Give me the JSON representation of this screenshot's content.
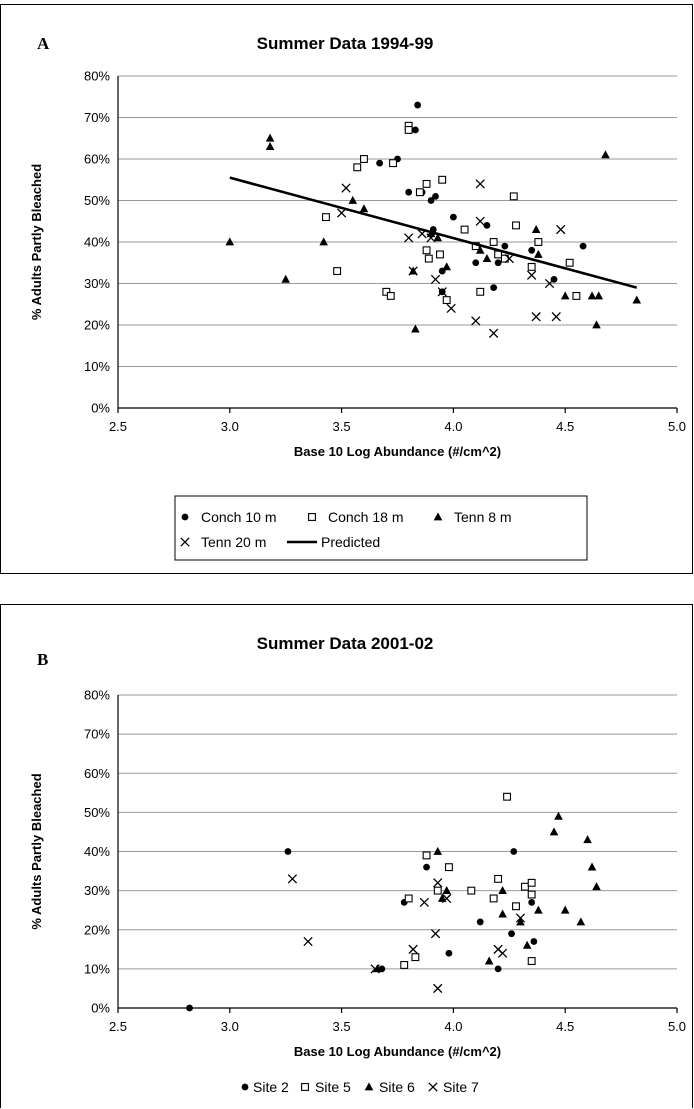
{
  "chart_data": [
    {
      "panel_label": "A",
      "type": "scatter",
      "title": "Summer Data 1994-99",
      "xlabel": "Base 10 Log Abundance (#/cm^2)",
      "ylabel": "% Adults Partly Bleached",
      "xlim": [
        2.5,
        5.0
      ],
      "ylim": [
        0,
        0.8
      ],
      "xticks": [
        "2.5",
        "3.0",
        "3.5",
        "4.0",
        "4.5",
        "5.0"
      ],
      "yticks": [
        "0%",
        "10%",
        "20%",
        "30%",
        "40%",
        "50%",
        "60%",
        "70%",
        "80%"
      ],
      "grid": true,
      "legend_position": "bottom",
      "series": [
        {
          "name": "Conch 10 m",
          "marker": "circle",
          "points": [
            [
              3.67,
              0.59
            ],
            [
              3.75,
              0.6
            ],
            [
              3.8,
              0.52
            ],
            [
              3.83,
              0.67
            ],
            [
              3.84,
              0.73
            ],
            [
              3.86,
              0.52
            ],
            [
              3.9,
              0.5
            ],
            [
              3.91,
              0.43
            ],
            [
              3.92,
              0.51
            ],
            [
              3.95,
              0.33
            ],
            [
              3.95,
              0.28
            ],
            [
              4.0,
              0.46
            ],
            [
              4.1,
              0.35
            ],
            [
              4.15,
              0.44
            ],
            [
              4.18,
              0.29
            ],
            [
              4.2,
              0.35
            ],
            [
              4.23,
              0.39
            ],
            [
              4.35,
              0.38
            ],
            [
              4.45,
              0.31
            ],
            [
              4.58,
              0.39
            ]
          ]
        },
        {
          "name": "Conch 18 m",
          "marker": "square",
          "points": [
            [
              3.43,
              0.46
            ],
            [
              3.48,
              0.33
            ],
            [
              3.57,
              0.58
            ],
            [
              3.6,
              0.6
            ],
            [
              3.7,
              0.28
            ],
            [
              3.72,
              0.27
            ],
            [
              3.73,
              0.59
            ],
            [
              3.8,
              0.68
            ],
            [
              3.8,
              0.67
            ],
            [
              3.85,
              0.52
            ],
            [
              3.88,
              0.54
            ],
            [
              3.88,
              0.38
            ],
            [
              3.89,
              0.36
            ],
            [
              3.94,
              0.37
            ],
            [
              3.95,
              0.55
            ],
            [
              3.97,
              0.26
            ],
            [
              4.05,
              0.43
            ],
            [
              4.1,
              0.39
            ],
            [
              4.12,
              0.28
            ],
            [
              4.18,
              0.4
            ],
            [
              4.2,
              0.37
            ],
            [
              4.23,
              0.36
            ],
            [
              4.27,
              0.51
            ],
            [
              4.28,
              0.44
            ],
            [
              4.35,
              0.34
            ],
            [
              4.38,
              0.4
            ],
            [
              4.52,
              0.35
            ],
            [
              4.55,
              0.27
            ]
          ]
        },
        {
          "name": "Tenn 8 m",
          "marker": "triangle",
          "points": [
            [
              3.0,
              0.4
            ],
            [
              3.18,
              0.65
            ],
            [
              3.18,
              0.63
            ],
            [
              3.25,
              0.31
            ],
            [
              3.42,
              0.4
            ],
            [
              3.55,
              0.5
            ],
            [
              3.6,
              0.48
            ],
            [
              3.82,
              0.33
            ],
            [
              3.83,
              0.19
            ],
            [
              3.9,
              0.42
            ],
            [
              3.93,
              0.41
            ],
            [
              3.97,
              0.34
            ],
            [
              4.12,
              0.38
            ],
            [
              4.15,
              0.36
            ],
            [
              4.37,
              0.43
            ],
            [
              4.38,
              0.37
            ],
            [
              4.5,
              0.27
            ],
            [
              4.62,
              0.27
            ],
            [
              4.64,
              0.2
            ],
            [
              4.65,
              0.27
            ],
            [
              4.68,
              0.61
            ],
            [
              4.82,
              0.26
            ]
          ]
        },
        {
          "name": "Tenn 20 m",
          "marker": "x",
          "points": [
            [
              3.5,
              0.47
            ],
            [
              3.52,
              0.53
            ],
            [
              3.8,
              0.41
            ],
            [
              3.82,
              0.33
            ],
            [
              3.86,
              0.42
            ],
            [
              3.9,
              0.41
            ],
            [
              3.92,
              0.31
            ],
            [
              3.95,
              0.28
            ],
            [
              3.99,
              0.24
            ],
            [
              4.1,
              0.21
            ],
            [
              4.12,
              0.54
            ],
            [
              4.12,
              0.45
            ],
            [
              4.18,
              0.18
            ],
            [
              4.25,
              0.36
            ],
            [
              4.35,
              0.32
            ],
            [
              4.37,
              0.22
            ],
            [
              4.43,
              0.3
            ],
            [
              4.46,
              0.22
            ],
            [
              4.48,
              0.43
            ]
          ]
        },
        {
          "name": "Predicted",
          "marker": "line",
          "points": [
            [
              3.0,
              0.555
            ],
            [
              4.82,
              0.29
            ]
          ]
        }
      ]
    },
    {
      "panel_label": "B",
      "type": "scatter",
      "title": "Summer Data 2001-02",
      "xlabel": "Base 10 Log Abundance (#/cm^2)",
      "ylabel": "% Adults Partly Bleached",
      "xlim": [
        2.5,
        5.0
      ],
      "ylim": [
        0,
        0.8
      ],
      "xticks": [
        "2.5",
        "3.0",
        "3.5",
        "4.0",
        "4.5",
        "5.0"
      ],
      "yticks": [
        "0%",
        "10%",
        "20%",
        "30%",
        "40%",
        "50%",
        "60%",
        "70%",
        "80%"
      ],
      "grid": true,
      "legend_position": "bottom",
      "series": [
        {
          "name": "Site 2",
          "marker": "circle",
          "points": [
            [
              2.82,
              0.0
            ],
            [
              3.26,
              0.4
            ],
            [
              3.68,
              0.1
            ],
            [
              3.78,
              0.27
            ],
            [
              3.88,
              0.36
            ],
            [
              3.98,
              0.14
            ],
            [
              4.12,
              0.22
            ],
            [
              4.2,
              0.1
            ],
            [
              4.26,
              0.19
            ],
            [
              4.27,
              0.4
            ],
            [
              4.35,
              0.27
            ],
            [
              4.36,
              0.17
            ]
          ]
        },
        {
          "name": "Site 5",
          "marker": "square",
          "points": [
            [
              3.78,
              0.11
            ],
            [
              3.8,
              0.28
            ],
            [
              3.83,
              0.13
            ],
            [
              3.88,
              0.39
            ],
            [
              3.93,
              0.3
            ],
            [
              3.98,
              0.36
            ],
            [
              4.08,
              0.3
            ],
            [
              4.18,
              0.28
            ],
            [
              4.2,
              0.33
            ],
            [
              4.24,
              0.54
            ],
            [
              4.28,
              0.26
            ],
            [
              4.32,
              0.31
            ],
            [
              4.35,
              0.12
            ],
            [
              4.35,
              0.32
            ],
            [
              4.35,
              0.29
            ]
          ]
        },
        {
          "name": "Site 6",
          "marker": "triangle",
          "points": [
            [
              3.66,
              0.1
            ],
            [
              3.93,
              0.4
            ],
            [
              3.95,
              0.28
            ],
            [
              3.97,
              0.3
            ],
            [
              4.16,
              0.12
            ],
            [
              4.22,
              0.24
            ],
            [
              4.22,
              0.3
            ],
            [
              4.3,
              0.22
            ],
            [
              4.33,
              0.16
            ],
            [
              4.38,
              0.25
            ],
            [
              4.45,
              0.45
            ],
            [
              4.47,
              0.49
            ],
            [
              4.5,
              0.25
            ],
            [
              4.57,
              0.22
            ],
            [
              4.6,
              0.43
            ],
            [
              4.62,
              0.36
            ],
            [
              4.64,
              0.31
            ]
          ]
        },
        {
          "name": "Site 7",
          "marker": "x",
          "points": [
            [
              3.28,
              0.33
            ],
            [
              3.35,
              0.17
            ],
            [
              3.65,
              0.1
            ],
            [
              3.82,
              0.15
            ],
            [
              3.87,
              0.27
            ],
            [
              3.92,
              0.19
            ],
            [
              3.93,
              0.05
            ],
            [
              3.93,
              0.32
            ],
            [
              3.97,
              0.28
            ],
            [
              4.2,
              0.15
            ],
            [
              4.22,
              0.14
            ],
            [
              4.3,
              0.23
            ]
          ]
        }
      ]
    }
  ]
}
